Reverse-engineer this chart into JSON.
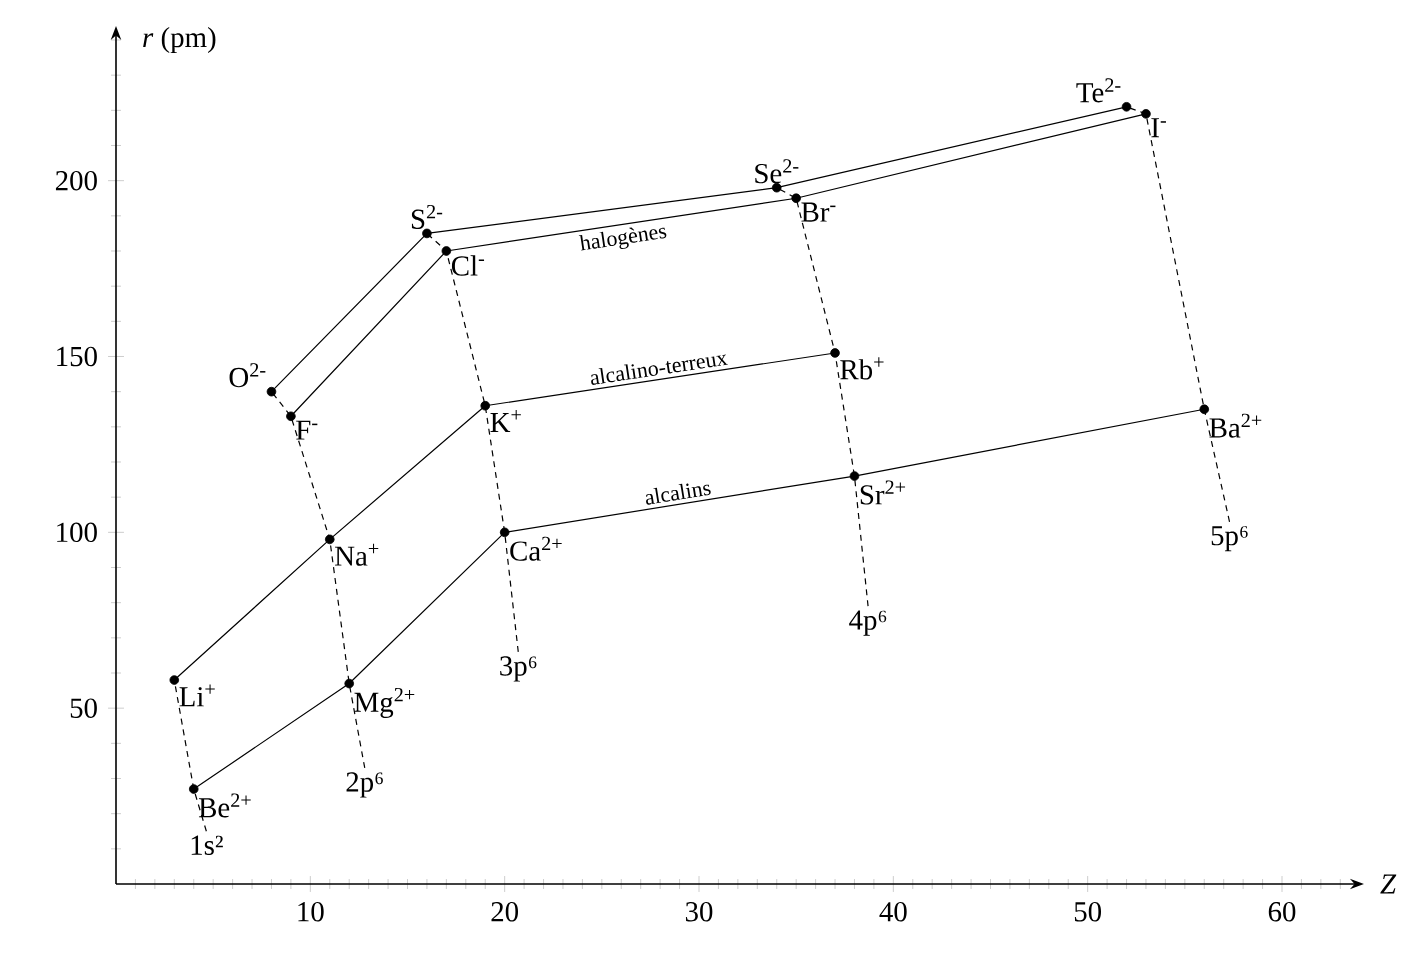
{
  "chart_data": {
    "type": "line",
    "xlabel": "*Z*",
    "ylabel": "*r* (pm)",
    "xlim": [
      0,
      63.5
    ],
    "ylim": [
      0,
      240
    ],
    "xticks": [
      10,
      20,
      30,
      40,
      50,
      60
    ],
    "yticks": [
      50,
      100,
      150,
      200
    ],
    "series": [
      {
        "name": null,
        "color": "#000000",
        "x": [
          8,
          16,
          34,
          52
        ],
        "values": [
          140,
          185,
          198,
          221
        ]
      },
      {
        "name": "halogènes",
        "color": "#000000",
        "x": [
          9,
          17,
          35,
          53
        ],
        "values": [
          133,
          180,
          195,
          219
        ]
      },
      {
        "name": "alcalino-terreux",
        "color": "#000000",
        "x": [
          3,
          11,
          19,
          37
        ],
        "values": [
          58,
          98,
          136,
          151
        ]
      },
      {
        "name": "alcalins",
        "color": "#000000",
        "x": [
          4,
          12,
          20,
          38,
          56
        ],
        "values": [
          27,
          57,
          100,
          116,
          135
        ]
      },
      {
        "name": "1s²",
        "color": "#000000",
        "line_style": "dashed",
        "x": [
          3,
          4,
          4.65
        ],
        "values": [
          58,
          27,
          15
        ]
      },
      {
        "name": "2p⁶",
        "color": "#000000",
        "line_style": "dashed",
        "x": [
          8,
          9,
          11,
          12,
          12.8
        ],
        "values": [
          140,
          133,
          98,
          57,
          33
        ]
      },
      {
        "name": "3p⁶",
        "color": "#000000",
        "line_style": "dashed",
        "x": [
          16,
          17,
          19,
          20,
          20.7
        ],
        "values": [
          185,
          180,
          136,
          100,
          66
        ]
      },
      {
        "name": "4p⁶",
        "color": "#000000",
        "line_style": "dashed",
        "x": [
          34,
          35,
          37,
          38,
          38.7
        ],
        "values": [
          198,
          195,
          151,
          116,
          79
        ]
      },
      {
        "name": "5p⁶",
        "color": "#000000",
        "line_style": "dashed",
        "x": [
          52,
          53,
          56,
          57.3
        ],
        "values": [
          221,
          219,
          135,
          103
        ]
      },
      {
        "type": "scatter",
        "marker": "circle",
        "color": "#000000",
        "x": [
          3,
          4,
          8,
          9,
          11,
          12,
          16,
          17,
          19,
          20,
          34,
          35,
          37,
          38,
          52,
          53,
          56
        ],
        "values": [
          58,
          27,
          140,
          133,
          98,
          57,
          185,
          180,
          136,
          100,
          198,
          195,
          151,
          116,
          221,
          219,
          135
        ]
      }
    ],
    "annotations": [
      {
        "text": "Li$^{+}$",
        "x": 3,
        "y": 58
      },
      {
        "text": "Be$^{2+}$",
        "x": 4,
        "y": 27
      },
      {
        "text": "O$^{2-}$",
        "x": 8,
        "y": 140
      },
      {
        "text": "F$^{-}$",
        "x": 9,
        "y": 133
      },
      {
        "text": "Na$^{+}$",
        "x": 11,
        "y": 98
      },
      {
        "text": "Mg$^{2+}$",
        "x": 12,
        "y": 57
      },
      {
        "text": "S$^{2-}$",
        "x": 16,
        "y": 185
      },
      {
        "text": "Cl$^{-}$",
        "x": 17,
        "y": 180
      },
      {
        "text": "K$^{+}$",
        "x": 19,
        "y": 136
      },
      {
        "text": "Ca$^{2+}$",
        "x": 20,
        "y": 100
      },
      {
        "text": "Se$^{2-}$",
        "x": 34,
        "y": 198
      },
      {
        "text": "Br$^{-}$",
        "x": 35,
        "y": 195
      },
      {
        "text": "Rb$^{+}$",
        "x": 37,
        "y": 151
      },
      {
        "text": "Sr$^{2+}$",
        "x": 38,
        "y": 116
      },
      {
        "text": "Te$^{2-}$",
        "x": 52,
        "y": 221
      },
      {
        "text": "I$^{-}$",
        "x": 53,
        "y": 219
      },
      {
        "text": "Ba$^{2+}$",
        "x": 56,
        "y": 135
      }
    ]
  }
}
